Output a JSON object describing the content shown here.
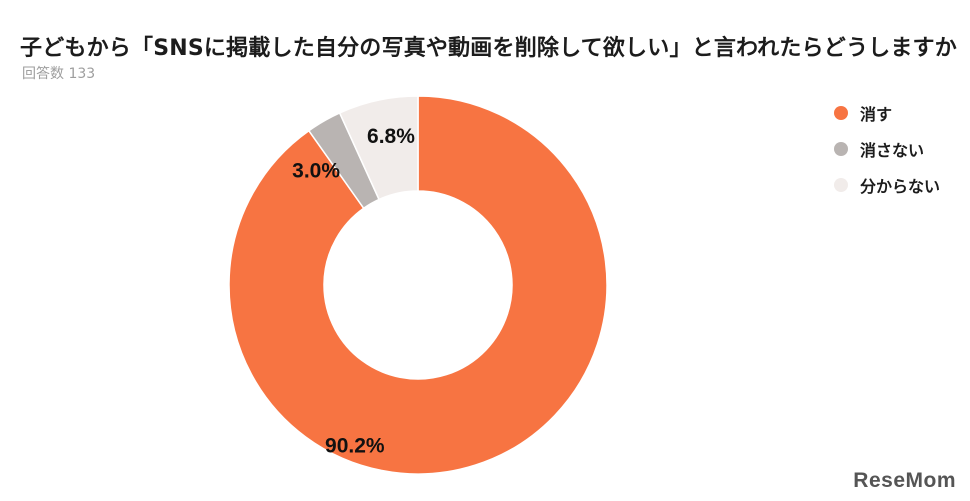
{
  "chart_data": {
    "type": "pie",
    "donut": true,
    "title": "子どもから「SNSに掲載した自分の写真や動画を削除して欲しい」と言われたらどうしますか",
    "subtitle": "回答数 133",
    "slices": [
      {
        "name": "消す",
        "value": 90.2,
        "label": "90.2%",
        "color": "#F77442"
      },
      {
        "name": "消さない",
        "value": 3.0,
        "label": "3.0%",
        "color": "#B9B4B2"
      },
      {
        "name": "分からない",
        "value": 6.8,
        "label": "6.8%",
        "color": "#F1ECEA"
      }
    ],
    "legend_position": "top-right"
  },
  "watermark": {
    "text_main": "ReseMom",
    "color": "#555555"
  }
}
